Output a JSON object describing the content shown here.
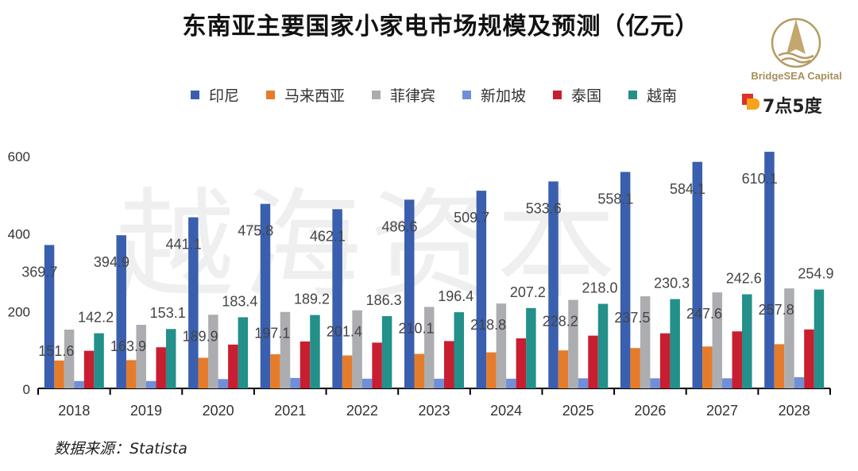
{
  "chart_data": {
    "type": "bar",
    "title": "东南亚主要国家小家电市场规模及预测（亿元）",
    "categories": [
      "2018",
      "2019",
      "2020",
      "2021",
      "2022",
      "2023",
      "2024",
      "2025",
      "2026",
      "2027",
      "2028"
    ],
    "ylim": [
      0,
      600
    ],
    "yticks": [
      0,
      200,
      400,
      600
    ],
    "grid": false,
    "legend_position": "top",
    "series": [
      {
        "name": "印尼",
        "color": "#3a5fae",
        "labeled": true,
        "values": [
          369.7,
          394.9,
          441.1,
          475.8,
          462.1,
          486.6,
          509.7,
          533.6,
          558.1,
          584.1,
          610.1
        ]
      },
      {
        "name": "马来西亚",
        "color": "#e57c2c",
        "labeled": false,
        "values": [
          72,
          73,
          79,
          88,
          85,
          89,
          93,
          98,
          104,
          108,
          114
        ]
      },
      {
        "name": "菲律宾",
        "color": "#acadb1",
        "labeled": true,
        "values": [
          151.6,
          163.9,
          189.9,
          197.1,
          201.4,
          210.1,
          218.8,
          228.2,
          237.5,
          247.6,
          257.8
        ]
      },
      {
        "name": "新加坡",
        "color": "#6f8fd8",
        "labeled": false,
        "values": [
          19,
          19,
          24,
          27,
          25,
          25,
          25,
          26,
          26,
          26,
          29
        ]
      },
      {
        "name": "泰国",
        "color": "#c81e32",
        "labeled": true,
        "values": [
          97,
          106,
          113,
          121,
          118,
          122,
          129,
          136,
          142,
          147,
          152
        ]
      },
      {
        "name": "越南",
        "color": "#23908a",
        "labeled": true,
        "values": [
          142.2,
          153.1,
          183.4,
          189.2,
          186.3,
          196.4,
          207.2,
          218.0,
          230.3,
          242.6,
          254.9
        ]
      }
    ]
  },
  "source": "数据来源：Statista",
  "watermark": "越海资本",
  "logo": {
    "brand": "BridgeSEA Capital",
    "partner": "7点5度"
  }
}
